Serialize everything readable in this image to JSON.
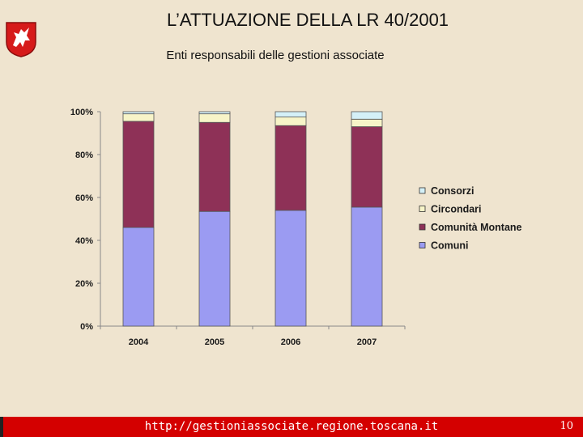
{
  "header": {
    "title": "L’ATTUAZIONE DELLA LR 40/2001",
    "subtitle": "Enti responsabili delle gestioni associate"
  },
  "footer": {
    "url": "http://gestioniassociate.regione.toscana.it",
    "page_number": "10"
  },
  "colors": {
    "background": "#efe4cf",
    "footer": "#d40000",
    "comuni": "#9b9bf2",
    "comunita_montane": "#8e3157",
    "circondari": "#f7f4c8",
    "consorzi": "#d4f0f7"
  },
  "icons": {
    "logo": "pegasus-crest-icon"
  },
  "chart_data": {
    "type": "bar",
    "stacked": true,
    "percent": true,
    "categories": [
      "2004",
      "2005",
      "2006",
      "2007"
    ],
    "series": [
      {
        "name": "Comuni",
        "values": [
          46,
          53.5,
          54,
          55.5
        ],
        "color": "#9b9bf2"
      },
      {
        "name": "Comunità Montane",
        "values": [
          49.5,
          41.5,
          39.5,
          37.5
        ],
        "color": "#8e3157"
      },
      {
        "name": "Circondari",
        "values": [
          3.5,
          4,
          4,
          3.5
        ],
        "color": "#f7f4c8"
      },
      {
        "name": "Consorzi",
        "values": [
          1,
          1,
          2.5,
          3.5
        ],
        "color": "#d4f0f7"
      }
    ],
    "yticks": [
      "0%",
      "20%",
      "40%",
      "60%",
      "80%",
      "100%"
    ],
    "ylim": [
      0,
      100
    ],
    "legend_position": "right",
    "legend_order": [
      "Consorzi",
      "Circondari",
      "Comunità Montane",
      "Comuni"
    ]
  }
}
